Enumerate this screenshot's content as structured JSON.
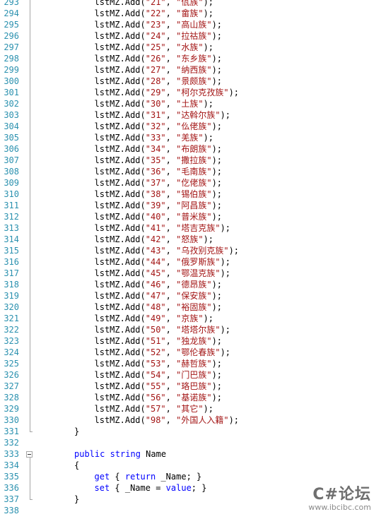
{
  "editor": {
    "lines": [
      {
        "n": "293",
        "indent": 3,
        "parts": [
          {
            "t": "lstMZ.Add(",
            "c": "plain"
          },
          {
            "t": "\"21\"",
            "c": "str"
          },
          {
            "t": ", ",
            "c": "plain"
          },
          {
            "t": "\"佤族\"",
            "c": "str"
          },
          {
            "t": ");",
            "c": "plain"
          }
        ]
      },
      {
        "n": "294",
        "indent": 3,
        "parts": [
          {
            "t": "lstMZ.Add(",
            "c": "plain"
          },
          {
            "t": "\"22\"",
            "c": "str"
          },
          {
            "t": ", ",
            "c": "plain"
          },
          {
            "t": "\"畲族\"",
            "c": "str"
          },
          {
            "t": ");",
            "c": "plain"
          }
        ]
      },
      {
        "n": "295",
        "indent": 3,
        "parts": [
          {
            "t": "lstMZ.Add(",
            "c": "plain"
          },
          {
            "t": "\"23\"",
            "c": "str"
          },
          {
            "t": ", ",
            "c": "plain"
          },
          {
            "t": "\"高山族\"",
            "c": "str"
          },
          {
            "t": ");",
            "c": "plain"
          }
        ]
      },
      {
        "n": "296",
        "indent": 3,
        "parts": [
          {
            "t": "lstMZ.Add(",
            "c": "plain"
          },
          {
            "t": "\"24\"",
            "c": "str"
          },
          {
            "t": ", ",
            "c": "plain"
          },
          {
            "t": "\"拉祜族\"",
            "c": "str"
          },
          {
            "t": ");",
            "c": "plain"
          }
        ]
      },
      {
        "n": "297",
        "indent": 3,
        "parts": [
          {
            "t": "lstMZ.Add(",
            "c": "plain"
          },
          {
            "t": "\"25\"",
            "c": "str"
          },
          {
            "t": ", ",
            "c": "plain"
          },
          {
            "t": "\"水族\"",
            "c": "str"
          },
          {
            "t": ");",
            "c": "plain"
          }
        ]
      },
      {
        "n": "298",
        "indent": 3,
        "parts": [
          {
            "t": "lstMZ.Add(",
            "c": "plain"
          },
          {
            "t": "\"26\"",
            "c": "str"
          },
          {
            "t": ", ",
            "c": "plain"
          },
          {
            "t": "\"东乡族\"",
            "c": "str"
          },
          {
            "t": ");",
            "c": "plain"
          }
        ]
      },
      {
        "n": "299",
        "indent": 3,
        "parts": [
          {
            "t": "lstMZ.Add(",
            "c": "plain"
          },
          {
            "t": "\"27\"",
            "c": "str"
          },
          {
            "t": ", ",
            "c": "plain"
          },
          {
            "t": "\"纳西族\"",
            "c": "str"
          },
          {
            "t": ");",
            "c": "plain"
          }
        ]
      },
      {
        "n": "300",
        "indent": 3,
        "parts": [
          {
            "t": "lstMZ.Add(",
            "c": "plain"
          },
          {
            "t": "\"28\"",
            "c": "str"
          },
          {
            "t": ", ",
            "c": "plain"
          },
          {
            "t": "\"景颇族\"",
            "c": "str"
          },
          {
            "t": ");",
            "c": "plain"
          }
        ]
      },
      {
        "n": "301",
        "indent": 3,
        "parts": [
          {
            "t": "lstMZ.Add(",
            "c": "plain"
          },
          {
            "t": "\"29\"",
            "c": "str"
          },
          {
            "t": ", ",
            "c": "plain"
          },
          {
            "t": "\"柯尔克孜族\"",
            "c": "str"
          },
          {
            "t": ");",
            "c": "plain"
          }
        ]
      },
      {
        "n": "302",
        "indent": 3,
        "parts": [
          {
            "t": "lstMZ.Add(",
            "c": "plain"
          },
          {
            "t": "\"30\"",
            "c": "str"
          },
          {
            "t": ", ",
            "c": "plain"
          },
          {
            "t": "\"土族\"",
            "c": "str"
          },
          {
            "t": ");",
            "c": "plain"
          }
        ]
      },
      {
        "n": "303",
        "indent": 3,
        "parts": [
          {
            "t": "lstMZ.Add(",
            "c": "plain"
          },
          {
            "t": "\"31\"",
            "c": "str"
          },
          {
            "t": ", ",
            "c": "plain"
          },
          {
            "t": "\"达斡尔族\"",
            "c": "str"
          },
          {
            "t": ");",
            "c": "plain"
          }
        ]
      },
      {
        "n": "304",
        "indent": 3,
        "parts": [
          {
            "t": "lstMZ.Add(",
            "c": "plain"
          },
          {
            "t": "\"32\"",
            "c": "str"
          },
          {
            "t": ", ",
            "c": "plain"
          },
          {
            "t": "\"仫佬族\"",
            "c": "str"
          },
          {
            "t": ");",
            "c": "plain"
          }
        ]
      },
      {
        "n": "305",
        "indent": 3,
        "parts": [
          {
            "t": "lstMZ.Add(",
            "c": "plain"
          },
          {
            "t": "\"33\"",
            "c": "str"
          },
          {
            "t": ", ",
            "c": "plain"
          },
          {
            "t": "\"羌族\"",
            "c": "str"
          },
          {
            "t": ");",
            "c": "plain"
          }
        ]
      },
      {
        "n": "306",
        "indent": 3,
        "parts": [
          {
            "t": "lstMZ.Add(",
            "c": "plain"
          },
          {
            "t": "\"34\"",
            "c": "str"
          },
          {
            "t": ", ",
            "c": "plain"
          },
          {
            "t": "\"布朗族\"",
            "c": "str"
          },
          {
            "t": ");",
            "c": "plain"
          }
        ]
      },
      {
        "n": "307",
        "indent": 3,
        "parts": [
          {
            "t": "lstMZ.Add(",
            "c": "plain"
          },
          {
            "t": "\"35\"",
            "c": "str"
          },
          {
            "t": ", ",
            "c": "plain"
          },
          {
            "t": "\"撒拉族\"",
            "c": "str"
          },
          {
            "t": ");",
            "c": "plain"
          }
        ]
      },
      {
        "n": "308",
        "indent": 3,
        "parts": [
          {
            "t": "lstMZ.Add(",
            "c": "plain"
          },
          {
            "t": "\"36\"",
            "c": "str"
          },
          {
            "t": ", ",
            "c": "plain"
          },
          {
            "t": "\"毛南族\"",
            "c": "str"
          },
          {
            "t": ");",
            "c": "plain"
          }
        ]
      },
      {
        "n": "309",
        "indent": 3,
        "parts": [
          {
            "t": "lstMZ.Add(",
            "c": "plain"
          },
          {
            "t": "\"37\"",
            "c": "str"
          },
          {
            "t": ", ",
            "c": "plain"
          },
          {
            "t": "\"仡佬族\"",
            "c": "str"
          },
          {
            "t": ");",
            "c": "plain"
          }
        ]
      },
      {
        "n": "310",
        "indent": 3,
        "parts": [
          {
            "t": "lstMZ.Add(",
            "c": "plain"
          },
          {
            "t": "\"38\"",
            "c": "str"
          },
          {
            "t": ", ",
            "c": "plain"
          },
          {
            "t": "\"锡伯族\"",
            "c": "str"
          },
          {
            "t": ");",
            "c": "plain"
          }
        ]
      },
      {
        "n": "311",
        "indent": 3,
        "parts": [
          {
            "t": "lstMZ.Add(",
            "c": "plain"
          },
          {
            "t": "\"39\"",
            "c": "str"
          },
          {
            "t": ", ",
            "c": "plain"
          },
          {
            "t": "\"阿昌族\"",
            "c": "str"
          },
          {
            "t": ");",
            "c": "plain"
          }
        ]
      },
      {
        "n": "312",
        "indent": 3,
        "parts": [
          {
            "t": "lstMZ.Add(",
            "c": "plain"
          },
          {
            "t": "\"40\"",
            "c": "str"
          },
          {
            "t": ", ",
            "c": "plain"
          },
          {
            "t": "\"普米族\"",
            "c": "str"
          },
          {
            "t": ");",
            "c": "plain"
          }
        ]
      },
      {
        "n": "313",
        "indent": 3,
        "parts": [
          {
            "t": "lstMZ.Add(",
            "c": "plain"
          },
          {
            "t": "\"41\"",
            "c": "str"
          },
          {
            "t": ", ",
            "c": "plain"
          },
          {
            "t": "\"塔吉克族\"",
            "c": "str"
          },
          {
            "t": ");",
            "c": "plain"
          }
        ]
      },
      {
        "n": "314",
        "indent": 3,
        "parts": [
          {
            "t": "lstMZ.Add(",
            "c": "plain"
          },
          {
            "t": "\"42\"",
            "c": "str"
          },
          {
            "t": ", ",
            "c": "plain"
          },
          {
            "t": "\"怒族\"",
            "c": "str"
          },
          {
            "t": ");",
            "c": "plain"
          }
        ]
      },
      {
        "n": "315",
        "indent": 3,
        "parts": [
          {
            "t": "lstMZ.Add(",
            "c": "plain"
          },
          {
            "t": "\"43\"",
            "c": "str"
          },
          {
            "t": ", ",
            "c": "plain"
          },
          {
            "t": "\"乌孜别克族\"",
            "c": "str"
          },
          {
            "t": ");",
            "c": "plain"
          }
        ]
      },
      {
        "n": "316",
        "indent": 3,
        "parts": [
          {
            "t": "lstMZ.Add(",
            "c": "plain"
          },
          {
            "t": "\"44\"",
            "c": "str"
          },
          {
            "t": ", ",
            "c": "plain"
          },
          {
            "t": "\"俄罗斯族\"",
            "c": "str"
          },
          {
            "t": ");",
            "c": "plain"
          }
        ]
      },
      {
        "n": "317",
        "indent": 3,
        "parts": [
          {
            "t": "lstMZ.Add(",
            "c": "plain"
          },
          {
            "t": "\"45\"",
            "c": "str"
          },
          {
            "t": ", ",
            "c": "plain"
          },
          {
            "t": "\"鄂温克族\"",
            "c": "str"
          },
          {
            "t": ");",
            "c": "plain"
          }
        ]
      },
      {
        "n": "318",
        "indent": 3,
        "parts": [
          {
            "t": "lstMZ.Add(",
            "c": "plain"
          },
          {
            "t": "\"46\"",
            "c": "str"
          },
          {
            "t": ", ",
            "c": "plain"
          },
          {
            "t": "\"德昂族\"",
            "c": "str"
          },
          {
            "t": ");",
            "c": "plain"
          }
        ]
      },
      {
        "n": "319",
        "indent": 3,
        "parts": [
          {
            "t": "lstMZ.Add(",
            "c": "plain"
          },
          {
            "t": "\"47\"",
            "c": "str"
          },
          {
            "t": ", ",
            "c": "plain"
          },
          {
            "t": "\"保安族\"",
            "c": "str"
          },
          {
            "t": ");",
            "c": "plain"
          }
        ]
      },
      {
        "n": "320",
        "indent": 3,
        "parts": [
          {
            "t": "lstMZ.Add(",
            "c": "plain"
          },
          {
            "t": "\"48\"",
            "c": "str"
          },
          {
            "t": ", ",
            "c": "plain"
          },
          {
            "t": "\"裕固族\"",
            "c": "str"
          },
          {
            "t": ");",
            "c": "plain"
          }
        ]
      },
      {
        "n": "321",
        "indent": 3,
        "parts": [
          {
            "t": "lstMZ.Add(",
            "c": "plain"
          },
          {
            "t": "\"49\"",
            "c": "str"
          },
          {
            "t": ", ",
            "c": "plain"
          },
          {
            "t": "\"京族\"",
            "c": "str"
          },
          {
            "t": ");",
            "c": "plain"
          }
        ]
      },
      {
        "n": "322",
        "indent": 3,
        "parts": [
          {
            "t": "lstMZ.Add(",
            "c": "plain"
          },
          {
            "t": "\"50\"",
            "c": "str"
          },
          {
            "t": ", ",
            "c": "plain"
          },
          {
            "t": "\"塔塔尔族\"",
            "c": "str"
          },
          {
            "t": ");",
            "c": "plain"
          }
        ]
      },
      {
        "n": "323",
        "indent": 3,
        "parts": [
          {
            "t": "lstMZ.Add(",
            "c": "plain"
          },
          {
            "t": "\"51\"",
            "c": "str"
          },
          {
            "t": ", ",
            "c": "plain"
          },
          {
            "t": "\"独龙族\"",
            "c": "str"
          },
          {
            "t": ");",
            "c": "plain"
          }
        ]
      },
      {
        "n": "324",
        "indent": 3,
        "parts": [
          {
            "t": "lstMZ.Add(",
            "c": "plain"
          },
          {
            "t": "\"52\"",
            "c": "str"
          },
          {
            "t": ", ",
            "c": "plain"
          },
          {
            "t": "\"鄂伦春族\"",
            "c": "str"
          },
          {
            "t": ");",
            "c": "plain"
          }
        ]
      },
      {
        "n": "325",
        "indent": 3,
        "parts": [
          {
            "t": "lstMZ.Add(",
            "c": "plain"
          },
          {
            "t": "\"53\"",
            "c": "str"
          },
          {
            "t": ", ",
            "c": "plain"
          },
          {
            "t": "\"赫哲族\"",
            "c": "str"
          },
          {
            "t": ");",
            "c": "plain"
          }
        ]
      },
      {
        "n": "326",
        "indent": 3,
        "parts": [
          {
            "t": "lstMZ.Add(",
            "c": "plain"
          },
          {
            "t": "\"54\"",
            "c": "str"
          },
          {
            "t": ", ",
            "c": "plain"
          },
          {
            "t": "\"门巴族\"",
            "c": "str"
          },
          {
            "t": ");",
            "c": "plain"
          }
        ]
      },
      {
        "n": "327",
        "indent": 3,
        "parts": [
          {
            "t": "lstMZ.Add(",
            "c": "plain"
          },
          {
            "t": "\"55\"",
            "c": "str"
          },
          {
            "t": ", ",
            "c": "plain"
          },
          {
            "t": "\"珞巴族\"",
            "c": "str"
          },
          {
            "t": ");",
            "c": "plain"
          }
        ]
      },
      {
        "n": "328",
        "indent": 3,
        "parts": [
          {
            "t": "lstMZ.Add(",
            "c": "plain"
          },
          {
            "t": "\"56\"",
            "c": "str"
          },
          {
            "t": ", ",
            "c": "plain"
          },
          {
            "t": "\"基诺族\"",
            "c": "str"
          },
          {
            "t": ");",
            "c": "plain"
          }
        ]
      },
      {
        "n": "329",
        "indent": 3,
        "parts": [
          {
            "t": "lstMZ.Add(",
            "c": "plain"
          },
          {
            "t": "\"57\"",
            "c": "str"
          },
          {
            "t": ", ",
            "c": "plain"
          },
          {
            "t": "\"其它\"",
            "c": "str"
          },
          {
            "t": ");",
            "c": "plain"
          }
        ]
      },
      {
        "n": "330",
        "indent": 3,
        "parts": [
          {
            "t": "lstMZ.Add(",
            "c": "plain"
          },
          {
            "t": "\"98\"",
            "c": "str"
          },
          {
            "t": ", ",
            "c": "plain"
          },
          {
            "t": "\"外国人入籍\"",
            "c": "str"
          },
          {
            "t": ");",
            "c": "plain"
          }
        ]
      },
      {
        "n": "331",
        "indent": 2,
        "parts": [
          {
            "t": "}",
            "c": "plain"
          }
        ]
      },
      {
        "n": "332",
        "indent": 0,
        "parts": []
      },
      {
        "n": "333",
        "indent": 2,
        "fold": true,
        "parts": [
          {
            "t": "public",
            "c": "kw"
          },
          {
            "t": " ",
            "c": "plain"
          },
          {
            "t": "string",
            "c": "kw"
          },
          {
            "t": " Name",
            "c": "plain"
          }
        ]
      },
      {
        "n": "334",
        "indent": 2,
        "parts": [
          {
            "t": "{",
            "c": "plain"
          }
        ]
      },
      {
        "n": "335",
        "indent": 3,
        "parts": [
          {
            "t": "get",
            "c": "kw"
          },
          {
            "t": " { ",
            "c": "plain"
          },
          {
            "t": "return",
            "c": "kw"
          },
          {
            "t": " _Name; }",
            "c": "plain"
          }
        ]
      },
      {
        "n": "336",
        "indent": 3,
        "parts": [
          {
            "t": "set",
            "c": "kw"
          },
          {
            "t": " { _Name = ",
            "c": "plain"
          },
          {
            "t": "value",
            "c": "kw"
          },
          {
            "t": "; }",
            "c": "plain"
          }
        ]
      },
      {
        "n": "337",
        "indent": 2,
        "parts": [
          {
            "t": "}",
            "c": "plain"
          }
        ]
      },
      {
        "n": "338",
        "indent": 0,
        "parts": []
      }
    ]
  },
  "watermark": {
    "title": "C#论坛",
    "url": "www.ibcibc.com"
  },
  "colors": {
    "line_number": "#2b91af",
    "string": "#a31515",
    "keyword": "#0000ff",
    "text": "#000000",
    "outline": "#a5a5a5"
  }
}
